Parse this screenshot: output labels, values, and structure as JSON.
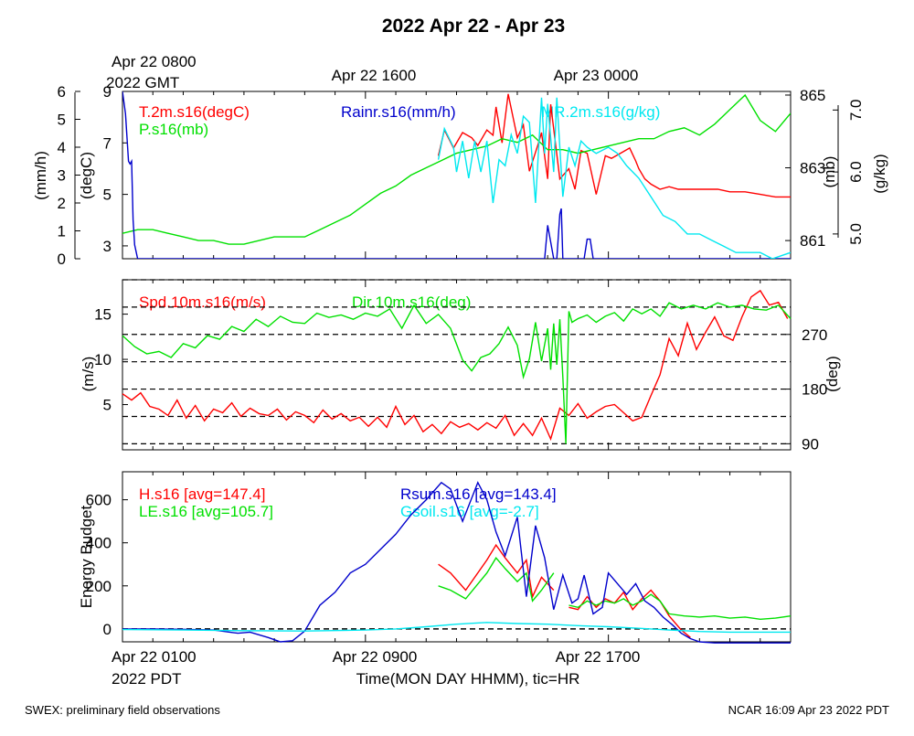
{
  "title": "2022 Apr 22 - Apr 23",
  "footer": {
    "left": "SWEX: preliminary field observations",
    "right": "NCAR 16:09 Apr 23 2022 PDT"
  },
  "top_axis": {
    "labels": [
      "Apr 22 0800",
      "Apr 22 1600",
      "Apr 23 0000"
    ],
    "sublabel": "2022 GMT"
  },
  "bottom_axis": {
    "labels": [
      "Apr 22 0100",
      "Apr 22 0900",
      "Apr 22 1700"
    ],
    "sublabel": "2022 PDT",
    "title": "Time(MON DAY HHMM), tic=HR"
  },
  "colors": {
    "red": "#ff0000",
    "green": "#00e000",
    "blue": "#0000cc",
    "cyan": "#00e8f0",
    "black": "#000000"
  },
  "chart_data": [
    {
      "type": "line",
      "panel": "met",
      "x_unit": "hours since Apr 22 0100 PDT",
      "xlim": [
        0,
        22
      ],
      "axes": {
        "rain": {
          "label": "(mm/h)",
          "ylim": [
            0,
            6
          ],
          "ticks": [
            "0",
            "1",
            "2",
            "3",
            "4",
            "5",
            "6"
          ]
        },
        "temp": {
          "label": "(degC)",
          "ylim": [
            2.5,
            9
          ],
          "ticks": [
            "3",
            "5",
            "7",
            "9"
          ]
        },
        "press": {
          "label": "(mb)",
          "ylim": [
            860.5,
            865.1
          ],
          "ticks": [
            "861",
            "863",
            "865"
          ]
        },
        "mr": {
          "label": "(g/kg)",
          "ylim": [
            4.6,
            7.3
          ],
          "ticks": [
            "5.0",
            "6.0",
            "7.0"
          ]
        }
      },
      "series": [
        {
          "name": "T.2m.s16(degC)",
          "axis": "temp",
          "color": "red",
          "x": [
            10.4,
            10.6,
            10.9,
            11.2,
            11.5,
            11.7,
            12.0,
            12.2,
            12.3,
            12.5,
            12.7,
            13.0,
            13.2,
            13.4,
            13.7,
            13.8,
            14.0,
            14.1,
            14.4,
            14.7,
            14.9,
            15.1,
            15.3,
            15.6,
            15.9,
            16.1,
            16.4,
            16.7,
            16.9,
            17.0,
            17.2,
            17.4,
            17.7,
            18.0,
            18.3,
            18.6,
            18.9,
            19.2,
            19.6,
            20.0,
            20.5,
            21.0,
            21.5,
            22.0
          ],
          "y": [
            6.5,
            7.5,
            6.8,
            7.4,
            7.2,
            6.9,
            7.5,
            7.3,
            8.4,
            7.0,
            8.9,
            7.2,
            7.7,
            5.9,
            7.0,
            7.4,
            5.6,
            8.5,
            5.6,
            6.0,
            5.2,
            6.7,
            6.6,
            5.0,
            6.5,
            6.4,
            6.6,
            6.8,
            6.3,
            6.0,
            5.6,
            5.4,
            5.2,
            5.3,
            5.2,
            5.2,
            5.2,
            5.2,
            5.2,
            5.1,
            5.1,
            5.0,
            4.9,
            4.9
          ]
        },
        {
          "name": "P.s16(mb)",
          "axis": "press",
          "color": "green",
          "x": [
            0,
            0.5,
            1,
            1.5,
            2,
            2.5,
            3,
            3.5,
            4,
            4.5,
            5,
            5.5,
            6,
            6.5,
            7,
            7.5,
            8,
            8.5,
            9,
            9.5,
            10,
            10.5,
            11,
            11.5,
            12,
            12.5,
            13,
            13.5,
            14,
            14.5,
            15,
            15.5,
            16,
            16.5,
            17,
            17.5,
            18,
            18.5,
            19,
            19.5,
            20,
            20.5,
            21,
            21.5,
            22
          ],
          "y": [
            861.2,
            861.3,
            861.3,
            861.2,
            861.1,
            861.0,
            861.0,
            860.9,
            860.9,
            861.0,
            861.1,
            861.1,
            861.1,
            861.3,
            861.5,
            861.7,
            862.0,
            862.3,
            862.5,
            862.8,
            863.0,
            863.2,
            863.4,
            863.5,
            863.6,
            863.8,
            863.7,
            863.9,
            863.5,
            863.5,
            863.4,
            863.5,
            863.6,
            863.7,
            863.8,
            863.8,
            864.0,
            864.1,
            863.9,
            864.2,
            864.6,
            865.0,
            864.3,
            864.0,
            864.5
          ]
        },
        {
          "name": "Rainr.s16(mm/h)",
          "axis": "rain",
          "color": "blue",
          "x": [
            0,
            0.1,
            0.2,
            0.25,
            0.3,
            0.35,
            0.4,
            0.5,
            0.8,
            1,
            2,
            3,
            4,
            5,
            6,
            7,
            8,
            9,
            10,
            11,
            12,
            13,
            13.5,
            13.6,
            13.7,
            13.8,
            13.9,
            14.0,
            14.2,
            14.3,
            14.4,
            14.45,
            14.5,
            14.8,
            15,
            15.2,
            15.3,
            15.4,
            15.5,
            15.6,
            16,
            17,
            18,
            19,
            20,
            21,
            22
          ],
          "y": [
            6,
            5.2,
            3.5,
            3.4,
            3.5,
            1.4,
            0.5,
            0,
            0,
            0,
            0,
            0,
            0,
            0,
            0,
            0,
            0,
            0,
            0,
            0,
            0,
            0,
            0,
            0,
            0,
            0,
            0,
            1.2,
            0,
            0,
            1.6,
            1.8,
            0,
            0,
            0,
            0,
            0.7,
            0.7,
            0,
            0,
            0,
            0,
            0,
            0,
            0,
            0,
            0
          ]
        },
        {
          "name": "MR.2m.s16(g/kg)",
          "axis": "mr",
          "color": "cyan",
          "x": [
            10.4,
            10.6,
            10.9,
            11.0,
            11.2,
            11.4,
            11.6,
            11.8,
            12.0,
            12.2,
            12.4,
            12.6,
            12.8,
            13.0,
            13.2,
            13.4,
            13.6,
            13.8,
            13.9,
            14.0,
            14.2,
            14.3,
            14.5,
            14.7,
            14.9,
            15.1,
            15.3,
            15.6,
            16.0,
            16.3,
            16.6,
            17.0,
            17.4,
            17.8,
            18.2,
            18.6,
            19.0,
            19.4,
            19.8,
            20.2,
            20.6,
            21.0,
            21.4,
            22.0
          ],
          "y": [
            6.2,
            6.7,
            6.4,
            6.0,
            6.5,
            5.9,
            6.5,
            6.0,
            6.5,
            5.5,
            6.2,
            6.1,
            6.6,
            6.3,
            6.9,
            6.8,
            5.5,
            7.2,
            6.3,
            7.1,
            6.0,
            7.2,
            5.6,
            6.4,
            6.1,
            6.5,
            6.4,
            6.3,
            6.4,
            6.3,
            6.1,
            5.9,
            5.6,
            5.3,
            5.2,
            5.0,
            5.0,
            4.9,
            4.8,
            4.7,
            4.7,
            4.7,
            4.6,
            4.7
          ]
        }
      ]
    },
    {
      "type": "line",
      "panel": "wind",
      "x_unit": "hours since Apr 22 0100 PDT",
      "xlim": [
        0,
        22
      ],
      "axes": {
        "spd": {
          "label": "(m/s)",
          "ylim": [
            0,
            18.8
          ],
          "ticks": [
            "5",
            "10",
            "15"
          ]
        },
        "dir": {
          "label": "(deg)",
          "ylim": [
            80,
            360
          ],
          "ticks": [
            "90",
            "180",
            "270"
          ]
        }
      },
      "grid_deg": [
        90,
        135,
        180,
        225,
        270,
        315,
        360
      ],
      "series": [
        {
          "name": "Spd.10m.s16(m/s)",
          "axis": "spd",
          "color": "red",
          "x": [
            0,
            0.3,
            0.6,
            0.9,
            1.2,
            1.5,
            1.8,
            2.1,
            2.4,
            2.7,
            3.0,
            3.3,
            3.6,
            3.9,
            4.2,
            4.5,
            4.8,
            5.1,
            5.4,
            5.7,
            6.0,
            6.3,
            6.6,
            6.9,
            7.2,
            7.5,
            7.8,
            8.1,
            8.4,
            8.7,
            9.0,
            9.3,
            9.6,
            9.9,
            10.2,
            10.5,
            10.8,
            11.1,
            11.4,
            11.7,
            12.0,
            12.3,
            12.6,
            12.9,
            13.2,
            13.5,
            13.8,
            14.1,
            14.4,
            14.7,
            15.0,
            15.3,
            15.6,
            15.9,
            16.2,
            16.5,
            16.8,
            17.1,
            17.4,
            17.7,
            18.0,
            18.3,
            18.6,
            18.9,
            19.2,
            19.5,
            19.8,
            20.1,
            20.4,
            20.7,
            21.0,
            21.3,
            21.6,
            21.9
          ],
          "y": [
            6.2,
            5.5,
            6.3,
            4.8,
            4.5,
            3.8,
            5.5,
            3.5,
            4.9,
            3.2,
            4.5,
            4.1,
            5.2,
            3.7,
            4.6,
            4.0,
            3.8,
            4.5,
            3.3,
            4.2,
            3.8,
            3.0,
            4.4,
            3.4,
            4.0,
            3.2,
            3.6,
            2.6,
            3.6,
            2.5,
            4.8,
            2.8,
            3.8,
            2.0,
            2.8,
            1.8,
            3.1,
            2.5,
            2.9,
            2.2,
            3.0,
            2.4,
            3.8,
            1.6,
            2.9,
            1.6,
            3.5,
            1.2,
            4.6,
            3.8,
            5.1,
            3.5,
            4.2,
            4.8,
            5.0,
            4.1,
            3.2,
            3.6,
            6.0,
            8.3,
            12.3,
            10.4,
            14.0,
            11.1,
            13.0,
            14.7,
            12.6,
            12.1,
            14.7,
            16.9,
            17.6,
            16.0,
            16.3,
            14.5
          ]
        },
        {
          "name": "Dir.10m.s16(deg)",
          "axis": "dir",
          "color": "green",
          "x": [
            0,
            0.4,
            0.8,
            1.2,
            1.6,
            2.0,
            2.4,
            2.8,
            3.2,
            3.6,
            4.0,
            4.4,
            4.8,
            5.2,
            5.6,
            6.0,
            6.4,
            6.8,
            7.2,
            7.6,
            8.0,
            8.4,
            8.8,
            9.2,
            9.6,
            10.0,
            10.4,
            10.8,
            11.2,
            11.5,
            11.8,
            12.1,
            12.4,
            12.7,
            13.0,
            13.2,
            13.4,
            13.6,
            13.8,
            14.0,
            14.1,
            14.2,
            14.3,
            14.4,
            14.5,
            14.6,
            14.7,
            14.8,
            15.0,
            15.3,
            15.6,
            15.9,
            16.2,
            16.5,
            16.8,
            17.1,
            17.4,
            17.7,
            18.0,
            18.4,
            18.8,
            19.2,
            19.6,
            20.0,
            20.4,
            20.8,
            21.2,
            21.6,
            22.0
          ],
          "y": [
            268,
            250,
            238,
            242,
            232,
            255,
            248,
            268,
            262,
            283,
            275,
            295,
            283,
            300,
            290,
            288,
            305,
            298,
            302,
            295,
            305,
            300,
            312,
            280,
            318,
            288,
            303,
            280,
            228,
            210,
            232,
            238,
            255,
            282,
            252,
            200,
            230,
            290,
            226,
            280,
            212,
            288,
            220,
            295,
            200,
            90,
            308,
            290,
            296,
            302,
            290,
            300,
            306,
            292,
            312,
            304,
            312,
            300,
            322,
            312,
            318,
            312,
            322,
            315,
            318,
            312,
            310,
            318,
            296
          ]
        }
      ]
    },
    {
      "type": "line",
      "panel": "energy",
      "x_unit": "hours since Apr 22 0100 PDT",
      "xlim": [
        0,
        22
      ],
      "ylabel": "Energy Budget",
      "ylim": [
        -60,
        730
      ],
      "yticks": [
        "0",
        "200",
        "400",
        "600"
      ],
      "zero_line": true,
      "series": [
        {
          "name": "H.s16 [avg=147.4]",
          "color": "red",
          "x": [
            10.4,
            10.8,
            11.3,
            12.0,
            12.3,
            12.6,
            13.0,
            13.3,
            13.5,
            13.8,
            14.2,
            null,
            14.7,
            15.0,
            15.3,
            15.6,
            15.9,
            16.2,
            16.5,
            16.8,
            17.1,
            17.4,
            17.7,
            18.0,
            18.4,
            18.7
          ],
          "y": [
            300,
            260,
            180,
            320,
            390,
            330,
            260,
            320,
            150,
            240,
            180,
            null,
            100,
            90,
            150,
            100,
            140,
            120,
            170,
            90,
            140,
            180,
            130,
            60,
            -5,
            -40
          ]
        },
        {
          "name": "LE.s16 [avg=105.7]",
          "color": "green",
          "x": [
            10.4,
            10.8,
            11.3,
            12.0,
            12.3,
            12.6,
            13.0,
            13.3,
            13.5,
            13.8,
            14.2,
            null,
            14.7,
            15.0,
            15.3,
            15.6,
            15.9,
            16.2,
            16.5,
            16.8,
            17.1,
            17.4,
            17.7,
            18.0,
            18.5,
            19.0,
            19.5,
            20.0,
            20.5,
            21.0,
            21.5,
            22.0
          ],
          "y": [
            200,
            180,
            140,
            260,
            330,
            280,
            220,
            260,
            130,
            180,
            260,
            null,
            110,
            100,
            130,
            110,
            130,
            120,
            140,
            110,
            130,
            160,
            130,
            70,
            60,
            55,
            60,
            50,
            55,
            45,
            50,
            60
          ]
        },
        {
          "name": "Rsum.s16 [avg=143.4]",
          "color": "blue",
          "x": [
            0,
            1,
            2,
            3,
            3.8,
            4.2,
            4.8,
            5.2,
            5.6,
            6.0,
            6.5,
            7.0,
            7.5,
            8.0,
            8.5,
            9.0,
            9.5,
            10.0,
            10.5,
            10.8,
            11.2,
            11.7,
            12.0,
            12.3,
            12.6,
            13.0,
            13.3,
            13.6,
            13.9,
            14.2,
            14.5,
            14.8,
            15.0,
            15.2,
            15.5,
            15.8,
            16.0,
            16.3,
            16.6,
            16.9,
            17.2,
            17.5,
            17.8,
            18.1,
            18.4,
            18.7,
            19.0,
            19.5,
            20.0,
            21.0,
            22.0
          ],
          "y": [
            0,
            0,
            -2,
            -5,
            -20,
            -15,
            -40,
            -60,
            -55,
            -10,
            110,
            170,
            260,
            300,
            370,
            440,
            530,
            600,
            680,
            650,
            500,
            680,
            600,
            450,
            340,
            520,
            150,
            480,
            330,
            90,
            250,
            120,
            140,
            250,
            70,
            100,
            260,
            210,
            160,
            210,
            130,
            100,
            55,
            20,
            -20,
            -45,
            -60,
            -65,
            -65,
            -65,
            -65
          ]
        },
        {
          "name": "Gsoil.s16 [avg=-2.7]",
          "color": "cyan",
          "x": [
            0,
            2,
            4,
            6,
            8,
            9,
            10,
            11,
            12,
            13,
            14,
            15,
            16,
            17,
            18,
            19,
            20,
            21,
            22
          ],
          "y": [
            -3,
            -5,
            -8,
            -10,
            -5,
            0,
            10,
            22,
            30,
            25,
            22,
            15,
            10,
            3,
            -5,
            -12,
            -15,
            -15,
            -15
          ]
        }
      ]
    }
  ]
}
